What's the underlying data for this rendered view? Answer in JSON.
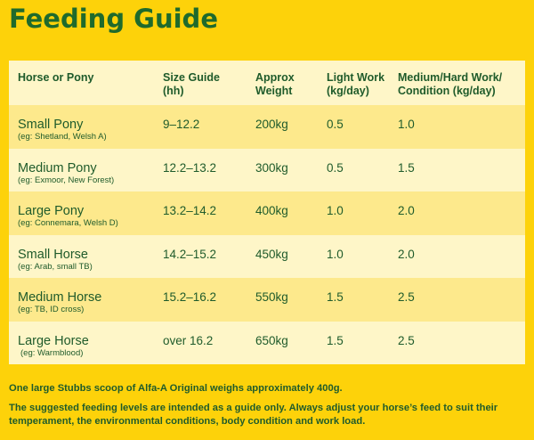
{
  "title": "Feeding Guide",
  "headers": {
    "col0": "Horse or Pony",
    "col1_line1": "Size Guide",
    "col1_line2": "(hh)",
    "col2_line1": "Approx",
    "col2_line2": "Weight",
    "col3_line1": "Light Work",
    "col3_line2": "(kg/day)",
    "col4_line1": "Medium/Hard Work/",
    "col4_line2": "Condition (kg/day)"
  },
  "rows": [
    {
      "name": "Small Pony",
      "eg": "(eg: Shetland, Welsh A)",
      "size": "9–12.2",
      "weight": "200kg",
      "light": "0.5",
      "medium": "1.0",
      "bg": "#fde98c"
    },
    {
      "name": "Medium Pony",
      "eg": "(eg: Exmoor, New Forest)",
      "size": "12.2–13.2",
      "weight": "300kg",
      "light": "0.5",
      "medium": "1.5",
      "bg": "#fef6c8"
    },
    {
      "name": "Large Pony",
      "eg": "(eg: Connemara, Welsh D)",
      "size": "13.2–14.2",
      "weight": "400kg",
      "light": "1.0",
      "medium": "2.0",
      "bg": "#fde98c"
    },
    {
      "name": "Small Horse",
      "eg": "(eg: Arab, small TB)",
      "size": "14.2–15.2",
      "weight": "450kg",
      "light": "1.0",
      "medium": "2.0",
      "bg": "#fef6c8"
    },
    {
      "name": "Medium Horse",
      "eg": "(eg: TB, ID cross)",
      "size": "15.2–16.2",
      "weight": "550kg",
      "light": "1.5",
      "medium": "2.5",
      "bg": "#fde98c"
    },
    {
      "name": "Large Horse",
      "eg": "(eg: Warmblood)",
      "size": "over 16.2",
      "weight": "650kg",
      "light": "1.5",
      "medium": "2.5",
      "bg": "#fef6c8"
    }
  ],
  "footer": {
    "line1": "One large Stubbs scoop of Alfa-A Original weighs approximately 400g.",
    "line2": "The suggested feeding levels are intended as a guide only.  Always adjust your horse’s feed to suit their temperament, the environmental conditions, body condition and work load."
  },
  "colors": {
    "background": "#fdd20a",
    "text": "#1f5b2b",
    "row_light": "#fef6c8",
    "row_dark": "#fde98c"
  }
}
